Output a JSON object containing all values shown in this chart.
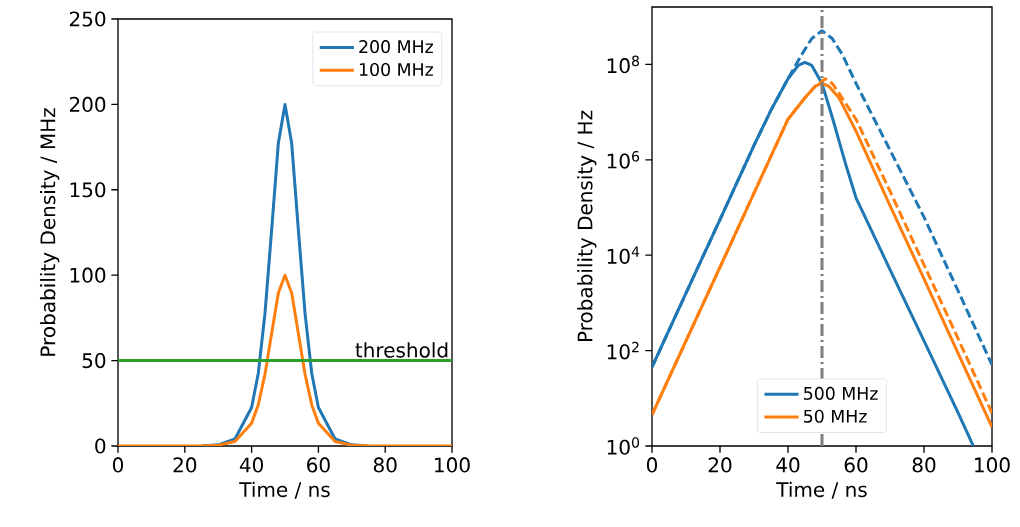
{
  "chart_data": [
    {
      "type": "line",
      "xlabel": "Time / ns",
      "ylabel": "Probability Density / MHz",
      "xlim": [
        0,
        100
      ],
      "ylim": [
        0,
        250
      ],
      "xticks": [
        0,
        20,
        40,
        60,
        80,
        100
      ],
      "yticks": [
        0,
        50,
        100,
        150,
        200,
        250
      ],
      "legend": "top right",
      "series": [
        {
          "name": "200 MHz",
          "color": "#1f77b4",
          "x": [
            25,
            30,
            35,
            40,
            42,
            44,
            46,
            48,
            50,
            52,
            54,
            56,
            58,
            60,
            65,
            70,
            75
          ],
          "values": [
            0,
            0.7,
            4.1,
            22.5,
            42.6,
            77.6,
            126.5,
            177.2,
            200,
            177.2,
            126.5,
            77.6,
            42.6,
            22.5,
            4.1,
            0.7,
            0
          ]
        },
        {
          "name": "100 MHz",
          "color": "#ff7f0e",
          "x": [
            0,
            10,
            20,
            25,
            30,
            35,
            40,
            42,
            44,
            46,
            48,
            50,
            52,
            54,
            56,
            58,
            60,
            65,
            70,
            75,
            80,
            90,
            100
          ],
          "values": [
            0,
            0,
            0,
            0,
            0.5,
            2.6,
            13.3,
            24.2,
            42,
            65.9,
            89.6,
            100,
            89.6,
            65.9,
            42,
            24.2,
            13.3,
            2.6,
            0.5,
            0,
            0,
            0,
            0
          ]
        }
      ],
      "ref_lines": [
        {
          "axis": "y",
          "value": 50,
          "label": "threshold",
          "color": "#2ca02c",
          "line_style": "solid"
        }
      ]
    },
    {
      "type": "line",
      "xlabel": "Time / ns",
      "ylabel": "Probability Density / Hz",
      "log": "y",
      "xlim": [
        0,
        100
      ],
      "ylim": [
        1,
        1600000000.0
      ],
      "xticks": [
        0,
        20,
        40,
        60,
        80,
        100
      ],
      "yticks": [
        {
          "value": 1,
          "label": "10$^{0}$"
        },
        {
          "value": 100,
          "label": "10$^{2}$"
        },
        {
          "value": 10000,
          "label": "10$^{4}$"
        },
        {
          "value": 1000000,
          "label": "10$^{6}$"
        },
        {
          "value": 100000000,
          "label": "10$^{8}$"
        }
      ],
      "legend": "bottom",
      "series": [
        {
          "name": "500 MHz",
          "color": "#1f77b4",
          "line_style": "solid",
          "x": [
            0,
            10,
            20,
            30,
            35,
            40,
            43,
            45,
            47,
            50,
            53,
            55,
            57,
            60,
            70,
            80,
            90,
            94.5
          ],
          "values": [
            45,
            1600,
            56000,
            2000000,
            11000000,
            50000000,
            95000000,
            110000000,
            95000000,
            40000000,
            7900000,
            2500000,
            790000,
            160000,
            5000,
            160,
            5,
            1
          ]
        },
        {
          "name": "50 MHz",
          "color": "#ff7f0e",
          "line_style": "solid",
          "x": [
            0,
            10,
            20,
            30,
            40,
            45,
            48,
            50,
            52,
            55,
            60,
            70,
            80,
            90,
            100
          ],
          "values": [
            4.5,
            160,
            5600,
            200000,
            7100000,
            20000000,
            35000000,
            40000000,
            35000000,
            20000000,
            4000000,
            110000,
            3200,
            89,
            2.5
          ]
        },
        {
          "color": "#1f77b4",
          "line_style": "dashed",
          "x": [
            0,
            10,
            20,
            30,
            35,
            40,
            44,
            47,
            50,
            53,
            56,
            60,
            70,
            80,
            90,
            100
          ],
          "values": [
            45,
            1600,
            56000,
            2000000,
            11000000,
            50000000,
            160000000,
            350000000,
            510000000,
            350000000,
            160000000,
            40000000,
            1600000,
            63000,
            1800,
            50
          ]
        },
        {
          "color": "#ff7f0e",
          "line_style": "dashed",
          "x": [
            0,
            10,
            20,
            30,
            40,
            45,
            48,
            51,
            53,
            55,
            60,
            70,
            80,
            90,
            100
          ],
          "values": [
            4.5,
            160,
            5600,
            200000,
            7100000,
            20000000,
            35000000,
            50000000,
            40000000,
            25000000,
            7100000,
            220000,
            6300,
            180,
            4.9
          ]
        }
      ],
      "ref_lines": [
        {
          "axis": "x",
          "value": 50,
          "color": "#7f7f7f",
          "line_style": "dashdot"
        }
      ]
    }
  ]
}
